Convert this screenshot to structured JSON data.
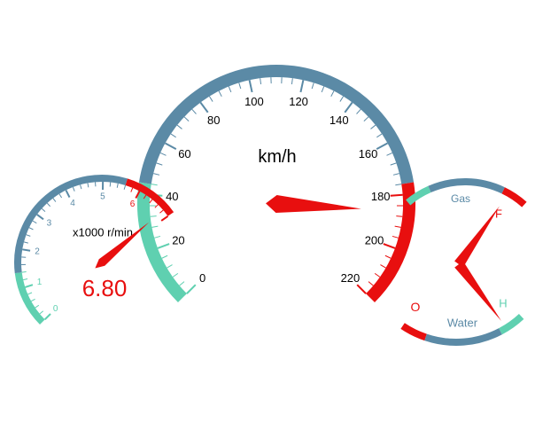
{
  "colors": {
    "green": "#5fd0b0",
    "blue": "#5b8aa6",
    "red": "#e80f0f",
    "text": "#000000",
    "readout": "#e80f0f"
  },
  "chart_data": [
    {
      "id": "speed",
      "type": "gauge",
      "title": "km/h",
      "min": 0,
      "max": 220,
      "value": 186,
      "major_ticks": [
        0,
        20,
        40,
        60,
        80,
        100,
        120,
        140,
        160,
        180,
        200,
        220
      ],
      "tick_labels": [
        "0",
        "20",
        "40",
        "60",
        "80",
        "100",
        "120",
        "140",
        "160",
        "180",
        "200",
        "220"
      ],
      "bands": [
        {
          "to_fraction": 0.2,
          "color": "green"
        },
        {
          "to_fraction": 0.8,
          "color": "blue"
        },
        {
          "to_fraction": 1.0,
          "color": "red"
        }
      ]
    },
    {
      "id": "rpm",
      "type": "gauge",
      "title": "x1000 r/min",
      "min": 0,
      "max": 7,
      "value": 6.8,
      "readout": "6.80",
      "major_ticks": [
        0,
        1,
        2,
        3,
        4,
        5,
        6,
        7
      ],
      "tick_labels": [
        "0",
        "1",
        "2",
        "3",
        "4",
        "5",
        "6",
        ""
      ],
      "bands": [
        {
          "to_fraction": 0.2,
          "color": "green"
        },
        {
          "to_fraction": 0.8,
          "color": "blue"
        },
        {
          "to_fraction": 1.0,
          "color": "red"
        }
      ]
    },
    {
      "id": "fuel",
      "type": "gauge",
      "title": "Gas",
      "min": 0,
      "max": 2,
      "value": 1.83,
      "end_labels": [
        "",
        "F"
      ],
      "bands": [
        {
          "to_fraction": 0.2,
          "color": "green"
        },
        {
          "to_fraction": 0.8,
          "color": "blue"
        },
        {
          "to_fraction": 1.0,
          "color": "red"
        }
      ]
    },
    {
      "id": "water",
      "type": "gauge",
      "title": "Water",
      "min": 0,
      "max": 2,
      "value": 1.84,
      "end_labels": [
        "O",
        "H"
      ],
      "bands": [
        {
          "to_fraction": 0.2,
          "color": "red"
        },
        {
          "to_fraction": 0.8,
          "color": "blue"
        },
        {
          "to_fraction": 1.0,
          "color": "green"
        }
      ]
    }
  ]
}
